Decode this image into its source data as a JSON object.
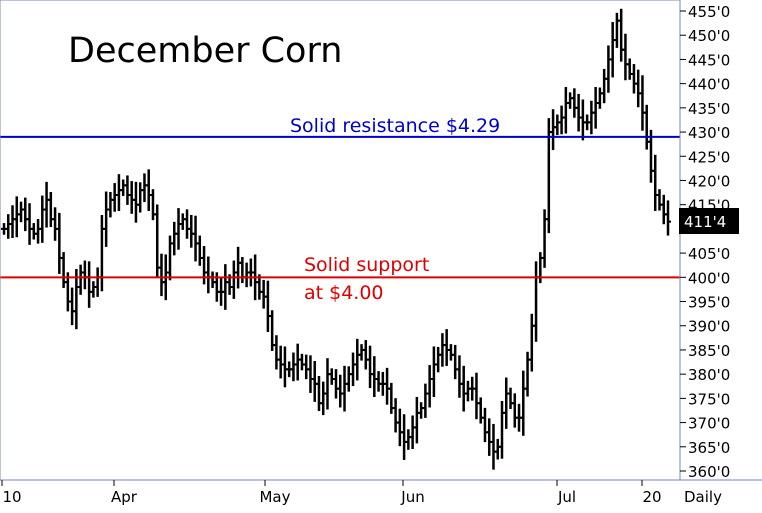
{
  "chart_data": {
    "type": "ohlc-bar",
    "title": "December Corn",
    "y_unit": "cents per bushel",
    "ylim": [
      359,
      456
    ],
    "y_ticks": [
      "455'0",
      "450'0",
      "445'0",
      "440'0",
      "435'0",
      "430'0",
      "425'0",
      "420'0",
      "415'0",
      "405'0",
      "400'0",
      "395'0",
      "390'0",
      "385'0",
      "380'0",
      "375'0",
      "370'0",
      "365'0",
      "360'0"
    ],
    "last_price_label": "411'4",
    "last_price": 411.5,
    "x_ticks": [
      "10",
      "Apr",
      "May",
      "Jun",
      "Jul",
      "20"
    ],
    "timeframe_label": "Daily",
    "lines": [
      {
        "label": "Solid resistance $4.29",
        "value": 429,
        "color": "#0000cc"
      },
      {
        "label_line1": "Solid support",
        "label_line2": "at $4.00",
        "value": 400,
        "color": "#dd0000"
      }
    ],
    "series_close": [
      410,
      411,
      412,
      413,
      414,
      412,
      410,
      409,
      410,
      414,
      416,
      412,
      410,
      404,
      399,
      395,
      393,
      398,
      401,
      400,
      397,
      398,
      400,
      410,
      414,
      416,
      417,
      418,
      419,
      417,
      416,
      415,
      418,
      419,
      417,
      413,
      402,
      399,
      401,
      407,
      409,
      411,
      412,
      410,
      409,
      407,
      404,
      401,
      400,
      399,
      397,
      397,
      399,
      398,
      401,
      403,
      400,
      401,
      401,
      399,
      397,
      396,
      392,
      386,
      383,
      382,
      381,
      381,
      382,
      383,
      382,
      381,
      379,
      378,
      374,
      376,
      380,
      379,
      377,
      376,
      378,
      380,
      382,
      384,
      385,
      383,
      380,
      379,
      378,
      378,
      377,
      373,
      370,
      368,
      366,
      367,
      369,
      372,
      373,
      376,
      379,
      382,
      384,
      386,
      385,
      384,
      381,
      378,
      376,
      377,
      377,
      374,
      371,
      368,
      366,
      364,
      365,
      372,
      376,
      374,
      371,
      371,
      377,
      383,
      390,
      400,
      404,
      412,
      430,
      431,
      432,
      433,
      436,
      437,
      435,
      433,
      432,
      432,
      434,
      436,
      438,
      441,
      445,
      449,
      453,
      447,
      444,
      442,
      440,
      438,
      434,
      428,
      422,
      417,
      415,
      413,
      411.5
    ]
  }
}
